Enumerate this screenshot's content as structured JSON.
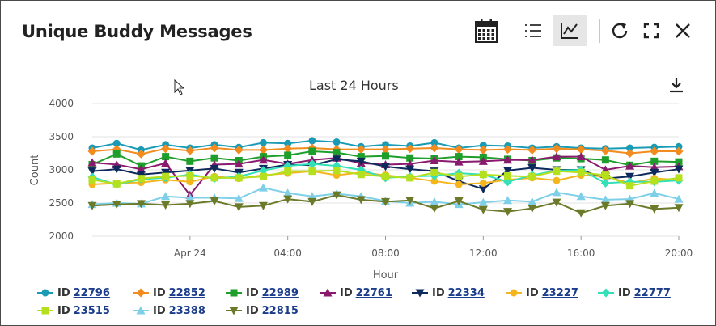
{
  "header": {
    "title": "Unique Buddy Messages"
  },
  "toolbar": {
    "calendar_icon": "calendar-icon",
    "list_icon": "list-view-icon",
    "chart_icon": "chart-view-icon",
    "refresh_icon": "refresh-icon",
    "fullscreen_icon": "fullscreen-icon",
    "close_icon": "close-icon",
    "active_view": "chart"
  },
  "chart_data": {
    "type": "line",
    "title": "Last 24 Hours",
    "xlabel": "Hour",
    "ylabel": "Count",
    "ylim": [
      2000,
      4000
    ],
    "y_ticks": [
      "2000",
      "2500",
      "3000",
      "3500",
      "4000"
    ],
    "x_ticks": [
      "Apr 24",
      "04:00",
      "08:00",
      "12:00",
      "16:00",
      "20:00"
    ],
    "x": [
      "Apr 23 20:00",
      "21:00",
      "22:00",
      "23:00",
      "Apr 24 00:00",
      "01:00",
      "02:00",
      "03:00",
      "04:00",
      "05:00",
      "06:00",
      "07:00",
      "08:00",
      "09:00",
      "10:00",
      "11:00",
      "12:00",
      "13:00",
      "14:00",
      "15:00",
      "16:00",
      "17:00",
      "18:00",
      "19:00",
      "20:00"
    ],
    "grid": "horizontal",
    "legend_position": "bottom",
    "series": [
      {
        "name": "22796",
        "color": "#1a9bb5",
        "marker": "circle",
        "values": [
          3330,
          3400,
          3300,
          3380,
          3330,
          3380,
          3340,
          3410,
          3400,
          3440,
          3420,
          3350,
          3380,
          3360,
          3410,
          3330,
          3370,
          3360,
          3330,
          3350,
          3330,
          3320,
          3330,
          3340,
          3350
        ]
      },
      {
        "name": "22852",
        "color": "#f28c1f",
        "marker": "diamond",
        "values": [
          3280,
          3310,
          3240,
          3320,
          3290,
          3330,
          3300,
          3300,
          3320,
          3330,
          3310,
          3310,
          3310,
          3320,
          3330,
          3310,
          3300,
          3310,
          3300,
          3320,
          3310,
          3290,
          3250,
          3280,
          3280
        ]
      },
      {
        "name": "22989",
        "color": "#1e9e2a",
        "marker": "square",
        "values": [
          3080,
          3240,
          3060,
          3200,
          3130,
          3180,
          3140,
          3200,
          3220,
          3280,
          3260,
          3200,
          3210,
          3180,
          3170,
          3200,
          3190,
          3160,
          3140,
          3180,
          3170,
          3150,
          3070,
          3130,
          3120
        ]
      },
      {
        "name": "22761",
        "color": "#8a1a6e",
        "marker": "triangle-up",
        "values": [
          3110,
          3080,
          3010,
          3100,
          2620,
          3080,
          3090,
          3150,
          3090,
          3150,
          3180,
          3100,
          3080,
          3090,
          3140,
          3120,
          3130,
          3150,
          3150,
          3200,
          3200,
          3000,
          3060,
          3040,
          3050
        ]
      },
      {
        "name": "22334",
        "color": "#0e2a5c",
        "marker": "triangle-down",
        "values": [
          2980,
          3010,
          2930,
          2960,
          2990,
          3020,
          2960,
          3020,
          3080,
          3070,
          3160,
          3130,
          3050,
          3010,
          2980,
          2830,
          2710,
          2990,
          3030,
          3000,
          3000,
          2870,
          2900,
          2960,
          3010
        ]
      },
      {
        "name": "23227",
        "color": "#f5b51d",
        "marker": "circle",
        "values": [
          2780,
          2800,
          2810,
          2850,
          2820,
          2900,
          2870,
          2920,
          2950,
          2980,
          2920,
          2960,
          2920,
          2880,
          2830,
          2780,
          2800,
          2850,
          2880,
          2840,
          2920,
          2900,
          2800,
          2870,
          2850
        ]
      },
      {
        "name": "22777",
        "color": "#34e0b8",
        "marker": "diamond",
        "values": [
          2890,
          2780,
          2860,
          2880,
          2930,
          2870,
          2900,
          2990,
          3060,
          3090,
          3060,
          3000,
          2880,
          2900,
          2910,
          2950,
          2930,
          2820,
          2920,
          2990,
          3000,
          2800,
          2820,
          2820,
          2840
        ]
      },
      {
        "name": "23515",
        "color": "#b5e01e",
        "marker": "square",
        "values": [
          2850,
          2790,
          2870,
          2900,
          2910,
          2880,
          2880,
          2900,
          2980,
          2980,
          2990,
          2930,
          2900,
          2880,
          2960,
          2900,
          2930,
          2910,
          2900,
          2980,
          2960,
          2920,
          2760,
          2830,
          2880
        ]
      },
      {
        "name": "23388",
        "color": "#7ecfe8",
        "marker": "triangle-up",
        "values": [
          2480,
          2500,
          2490,
          2600,
          2580,
          2580,
          2570,
          2730,
          2650,
          2600,
          2640,
          2600,
          2530,
          2500,
          2520,
          2480,
          2510,
          2540,
          2520,
          2660,
          2600,
          2550,
          2560,
          2650,
          2560
        ]
      },
      {
        "name": "22815",
        "color": "#6b7a28",
        "marker": "triangle-down",
        "values": [
          2460,
          2480,
          2490,
          2470,
          2490,
          2530,
          2440,
          2460,
          2560,
          2520,
          2620,
          2550,
          2520,
          2540,
          2420,
          2530,
          2400,
          2370,
          2420,
          2510,
          2350,
          2460,
          2490,
          2410,
          2430
        ]
      }
    ]
  },
  "legend": {
    "prefix": "ID",
    "items": [
      {
        "id": "22796"
      },
      {
        "id": "22852"
      },
      {
        "id": "22989"
      },
      {
        "id": "22761"
      },
      {
        "id": "22334"
      },
      {
        "id": "23227"
      },
      {
        "id": "22777"
      },
      {
        "id": "23515"
      },
      {
        "id": "23388"
      },
      {
        "id": "22815"
      }
    ]
  }
}
